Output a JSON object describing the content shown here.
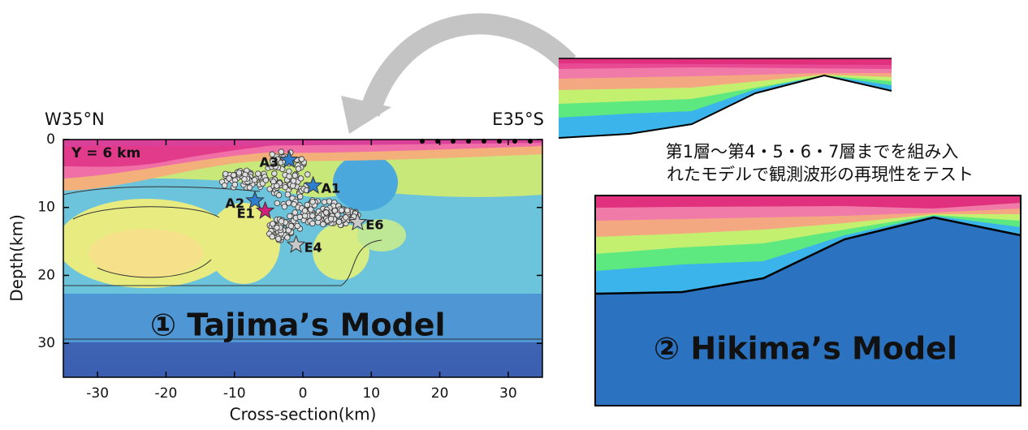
{
  "left_panel": {
    "corner_left": "W35°N",
    "corner_right": "E35°S",
    "annotation": "Y = 6 km",
    "xlabel": "Cross-section(km)",
    "ylabel": "Depth(km)",
    "xlim": [
      -35,
      35
    ],
    "ylim": [
      0,
      35
    ],
    "xticks": [
      -30,
      -20,
      -10,
      0,
      10,
      20,
      30
    ],
    "yticks": [
      0,
      10,
      20,
      30
    ],
    "model_label": "① Tajima’s Model",
    "events": [
      {
        "label": "A3",
        "x": -2,
        "depth": 3,
        "color": "#2f7fd0"
      },
      {
        "label": "A1",
        "x": 1.5,
        "depth": 6.8,
        "color": "#2f7fd0"
      },
      {
        "label": "A2",
        "x": -7,
        "depth": 9,
        "color": "#2f7fd0"
      },
      {
        "label": "E1",
        "x": -5.5,
        "depth": 10.5,
        "color": "#d0207a"
      },
      {
        "label": "E6",
        "x": 8,
        "depth": 12.2,
        "color": "#c8c8c8"
      },
      {
        "label": "E4",
        "x": -1,
        "depth": 15.5,
        "color": "#c8c8c8"
      }
    ]
  },
  "caption": [
    "第1層～第4・5・6・7層までを組み入",
    "れたモデルで観測波形の再現性をテスト"
  ],
  "right_panel": {
    "model_label": "② Hikima’s Model"
  }
}
